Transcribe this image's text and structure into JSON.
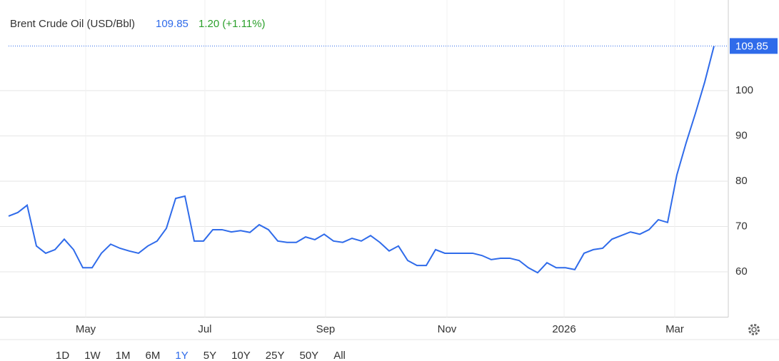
{
  "chart_data": {
    "type": "line",
    "title": "Brent Crude Oil (USD/Bbl)",
    "change": "1.20 (+1.11%)",
    "color": "#2f6bea",
    "values": [
      72.3,
      73.1,
      74.7,
      65.7,
      64.1,
      64.9,
      67.2,
      64.9,
      60.9,
      60.9,
      64.1,
      66.1,
      65.2,
      64.6,
      64.1,
      65.7,
      66.8,
      69.6,
      76.2,
      76.7,
      66.8,
      66.8,
      69.3,
      69.3,
      68.8,
      69.1,
      68.7,
      70.4,
      69.3,
      66.8,
      66.5,
      66.5,
      67.7,
      67.1,
      68.3,
      66.8,
      66.5,
      67.4,
      66.8,
      68.0,
      66.5,
      64.6,
      65.7,
      62.5,
      61.4,
      61.4,
      64.9,
      64.1,
      64.1,
      64.1,
      64.1,
      63.6,
      62.7,
      63.0,
      63.0,
      62.5,
      60.9,
      59.8,
      62.0,
      60.9,
      60.9,
      60.5,
      64.1,
      64.9,
      65.2,
      67.2,
      68.0,
      68.8,
      68.3,
      69.3,
      71.5,
      70.9,
      81.4,
      88.5,
      95.0,
      101.9,
      109.85
    ],
    "xlim": [
      0,
      77.54
    ],
    "xticks": [
      {
        "value": 8.31,
        "label": "May"
      },
      {
        "value": 21.15,
        "label": "Jul"
      },
      {
        "value": 34.15,
        "label": "Sep"
      },
      {
        "value": 47.23,
        "label": "Nov"
      },
      {
        "value": 59.85,
        "label": "2026"
      },
      {
        "value": 71.77,
        "label": "Mar"
      }
    ],
    "ylim": [
      50,
      115
    ],
    "yticks": [
      60,
      70,
      80,
      90,
      100
    ],
    "grid": true,
    "range_buttons": [
      "1D",
      "1W",
      "1M",
      "6M",
      "1Y",
      "5Y",
      "10Y",
      "25Y",
      "50Y",
      "All"
    ],
    "selected_range": "1Y"
  }
}
